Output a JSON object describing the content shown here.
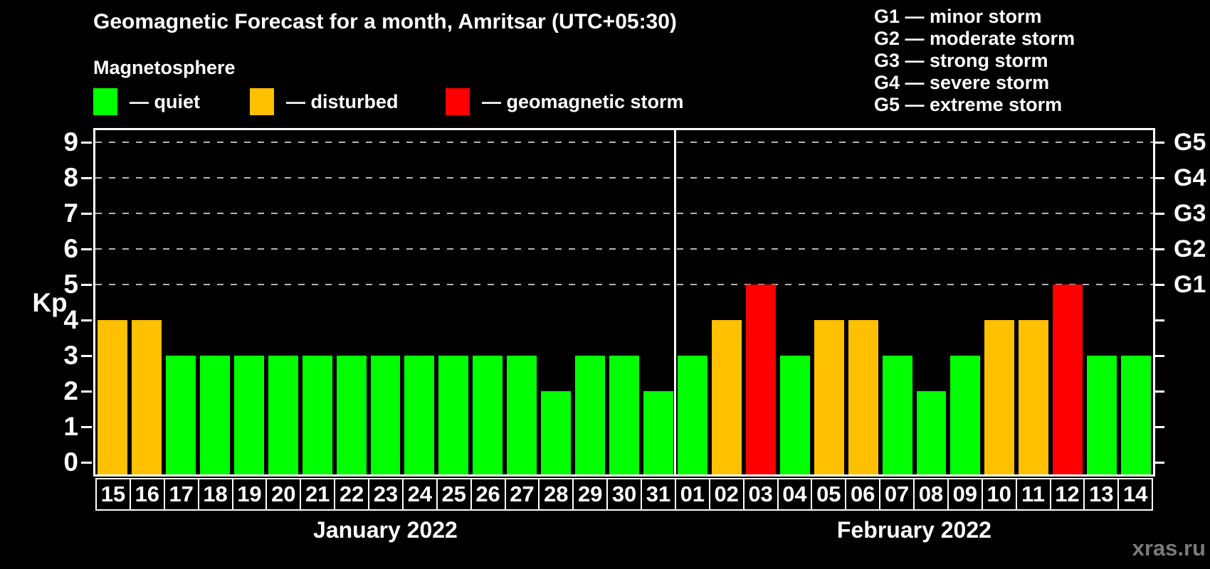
{
  "title": "Geomagnetic Forecast for a month, Amritsar (UTC+05:30)",
  "subtitle": "Magnetosphere",
  "legend": {
    "items": [
      {
        "key": "quiet",
        "label": "— quiet",
        "color": "#00ff00"
      },
      {
        "key": "disturbed",
        "label": "— disturbed",
        "color": "#ffc000"
      },
      {
        "key": "storm",
        "label": "— geomagnetic storm",
        "color": "#ff0000"
      }
    ]
  },
  "g_legend": [
    "G1 — minor storm",
    "G2 — moderate storm",
    "G3 — strong storm",
    "G4 — severe storm",
    "G5 — extreme storm"
  ],
  "watermark": "xras.ru",
  "chart_data": {
    "type": "bar",
    "title": "Geomagnetic Forecast for a month, Amritsar (UTC+05:30)",
    "ylabel": "Kp",
    "ylim": [
      -0.34,
      9.34
    ],
    "y_ticks": [
      0,
      1,
      2,
      3,
      4,
      5,
      6,
      7,
      8,
      9
    ],
    "gridlines_at": [
      5,
      6,
      7,
      8,
      9
    ],
    "grid_style": "dashed gray horizontal lines at Kp 5-9 only",
    "right_axis": [
      {
        "kp": 5,
        "label": "G1"
      },
      {
        "kp": 6,
        "label": "G2"
      },
      {
        "kp": 7,
        "label": "G3"
      },
      {
        "kp": 8,
        "label": "G4"
      },
      {
        "kp": 9,
        "label": "G5"
      }
    ],
    "statuses": {
      "quiet": "#00ff00",
      "disturbed": "#ffc000",
      "storm": "#ff0000"
    },
    "months": [
      {
        "label": "January 2022",
        "days": [
          {
            "day": "15",
            "kp": 4,
            "status": "disturbed"
          },
          {
            "day": "16",
            "kp": 4,
            "status": "disturbed"
          },
          {
            "day": "17",
            "kp": 3,
            "status": "quiet"
          },
          {
            "day": "18",
            "kp": 3,
            "status": "quiet"
          },
          {
            "day": "19",
            "kp": 3,
            "status": "quiet"
          },
          {
            "day": "20",
            "kp": 3,
            "status": "quiet"
          },
          {
            "day": "21",
            "kp": 3,
            "status": "quiet"
          },
          {
            "day": "22",
            "kp": 3,
            "status": "quiet"
          },
          {
            "day": "23",
            "kp": 3,
            "status": "quiet"
          },
          {
            "day": "24",
            "kp": 3,
            "status": "quiet"
          },
          {
            "day": "25",
            "kp": 3,
            "status": "quiet"
          },
          {
            "day": "26",
            "kp": 3,
            "status": "quiet"
          },
          {
            "day": "27",
            "kp": 3,
            "status": "quiet"
          },
          {
            "day": "28",
            "kp": 2,
            "status": "quiet"
          },
          {
            "day": "29",
            "kp": 3,
            "status": "quiet"
          },
          {
            "day": "30",
            "kp": 3,
            "status": "quiet"
          },
          {
            "day": "31",
            "kp": 2,
            "status": "quiet"
          }
        ]
      },
      {
        "label": "February 2022",
        "days": [
          {
            "day": "01",
            "kp": 3,
            "status": "quiet"
          },
          {
            "day": "02",
            "kp": 4,
            "status": "disturbed"
          },
          {
            "day": "03",
            "kp": 5,
            "status": "storm"
          },
          {
            "day": "04",
            "kp": 3,
            "status": "quiet"
          },
          {
            "day": "05",
            "kp": 4,
            "status": "disturbed"
          },
          {
            "day": "06",
            "kp": 4,
            "status": "disturbed"
          },
          {
            "day": "07",
            "kp": 3,
            "status": "quiet"
          },
          {
            "day": "08",
            "kp": 2,
            "status": "quiet"
          },
          {
            "day": "09",
            "kp": 3,
            "status": "quiet"
          },
          {
            "day": "10",
            "kp": 4,
            "status": "disturbed"
          },
          {
            "day": "11",
            "kp": 4,
            "status": "disturbed"
          },
          {
            "day": "12",
            "kp": 5,
            "status": "storm"
          },
          {
            "day": "13",
            "kp": 3,
            "status": "quiet"
          },
          {
            "day": "14",
            "kp": 3,
            "status": "quiet"
          }
        ]
      }
    ]
  }
}
